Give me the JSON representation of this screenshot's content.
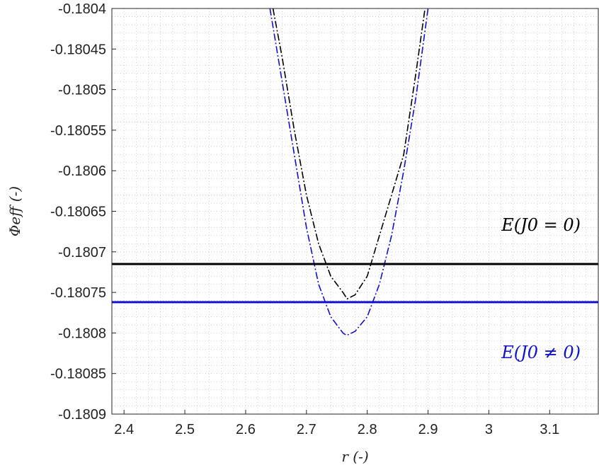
{
  "chart_data": {
    "type": "line",
    "xlabel": "r (-)",
    "ylabel": "Φeff (-)",
    "xlim": [
      2.38,
      3.18
    ],
    "ylim": [
      -0.1809,
      -0.1804
    ],
    "grid": true,
    "grid_style": "dotted minor",
    "x_ticks": [
      2.4,
      2.5,
      2.6,
      2.7,
      2.8,
      2.9,
      3.0,
      3.1
    ],
    "x_tick_labels": [
      "2.4",
      "2.5",
      "2.6",
      "2.7",
      "2.8",
      "2.9",
      "3",
      "3.1"
    ],
    "y_ticks": [
      -0.1804,
      -0.18045,
      -0.1805,
      -0.18055,
      -0.1806,
      -0.18065,
      -0.1807,
      -0.18075,
      -0.1808,
      -0.18085,
      -0.1809
    ],
    "y_tick_labels": [
      "-0.1804",
      "-0.18045",
      "-0.1805",
      "-0.18055",
      "-0.1806",
      "-0.18065",
      "-0.1807",
      "-0.18075",
      "-0.1808",
      "-0.18085",
      "-0.1809"
    ],
    "series": [
      {
        "line_style": "dash-dot",
        "color": "#000000",
        "x": [
          2.645,
          2.66,
          2.68,
          2.7,
          2.72,
          2.74,
          2.76,
          2.767,
          2.78,
          2.8,
          2.82,
          2.84,
          2.86,
          2.88,
          2.895
        ],
        "y": [
          -0.1804,
          -0.18046,
          -0.18055,
          -0.18063,
          -0.18069,
          -0.18073,
          -0.18075,
          -0.180758,
          -0.180753,
          -0.18073,
          -0.18068,
          -0.18063,
          -0.18058,
          -0.18048,
          -0.1804
        ]
      },
      {
        "line_style": "dash-dot",
        "color": "#1010d0",
        "x": [
          2.64,
          2.66,
          2.68,
          2.7,
          2.72,
          2.74,
          2.76,
          2.766,
          2.78,
          2.8,
          2.82,
          2.84,
          2.86,
          2.88,
          2.9
        ],
        "y": [
          -0.1804,
          -0.18049,
          -0.18058,
          -0.18067,
          -0.18074,
          -0.18078,
          -0.1808,
          -0.180803,
          -0.180798,
          -0.18078,
          -0.18074,
          -0.18068,
          -0.1806,
          -0.18051,
          -0.1804
        ]
      },
      {
        "line_style": "solid",
        "color": "#000000",
        "x": [
          2.38,
          3.18
        ],
        "y": [
          -0.180715,
          -0.180715
        ]
      },
      {
        "line_style": "solid",
        "color": "#1010d0",
        "x": [
          2.38,
          3.18
        ],
        "y": [
          -0.180762,
          -0.180762
        ]
      }
    ],
    "annotations": [
      {
        "text": "E(J0 = 0)",
        "color": "#000000"
      },
      {
        "text": "E(J0 ≠ 0)",
        "color": "#1010d0"
      }
    ]
  }
}
